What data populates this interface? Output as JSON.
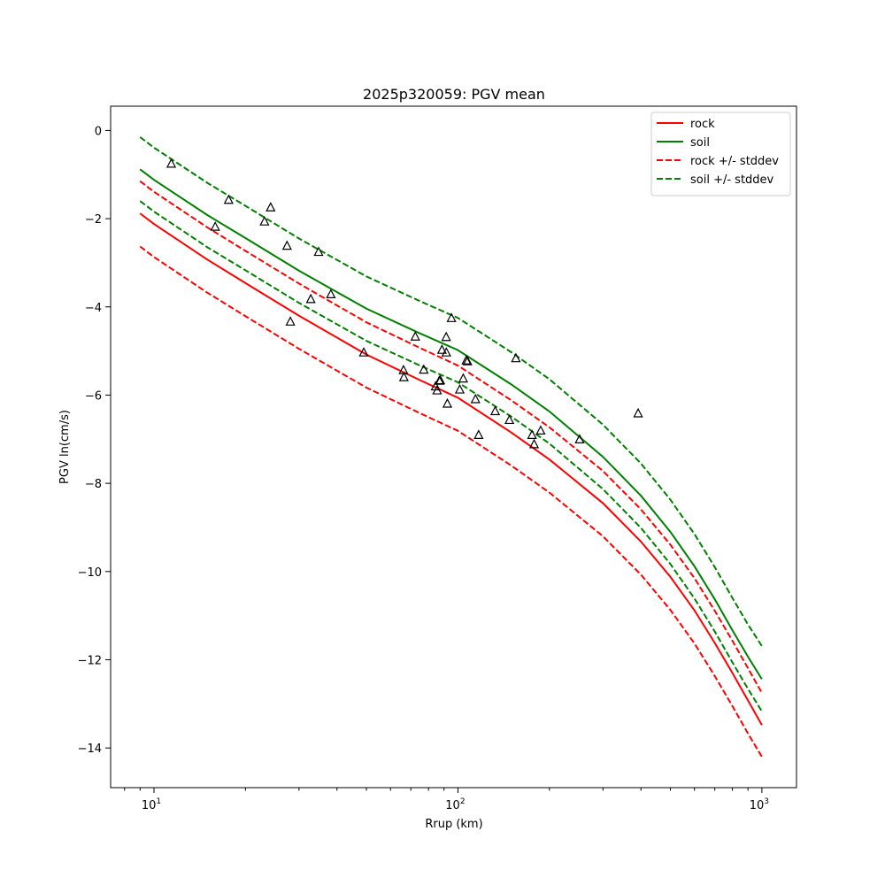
{
  "chart_data": {
    "type": "line",
    "title": "2025p320059: PGV mean",
    "xlabel": "Rrup (km)",
    "ylabel": "PGV ln(cm/s)",
    "xscale": "log",
    "xlim": [
      7.2,
      1300
    ],
    "ylim": [
      -14.9,
      0.55
    ],
    "grid": false,
    "legend_position": "top-right",
    "x_ticks": [
      {
        "value": 10,
        "base": "10",
        "exp": "1"
      },
      {
        "value": 100,
        "base": "10",
        "exp": "2"
      },
      {
        "value": 1000,
        "base": "10",
        "exp": "3"
      }
    ],
    "y_ticks": [
      {
        "value": 0,
        "label": "0"
      },
      {
        "value": -2,
        "label": "−2"
      },
      {
        "value": -4,
        "label": "−4"
      },
      {
        "value": -6,
        "label": "−6"
      },
      {
        "value": -8,
        "label": "−8"
      },
      {
        "value": -10,
        "label": "−10"
      },
      {
        "value": -12,
        "label": "−12"
      },
      {
        "value": -14,
        "label": "−14"
      }
    ],
    "x": [
      9,
      10,
      15,
      20,
      30,
      50,
      75,
      100,
      150,
      200,
      300,
      400,
      500,
      600,
      700,
      800,
      900,
      1000
    ],
    "series": [
      {
        "name": "rock",
        "color": "#ff0000",
        "dash": "solid",
        "values": [
          -1.88,
          -2.12,
          -2.93,
          -3.46,
          -4.2,
          -5.08,
          -5.66,
          -6.06,
          -6.85,
          -7.46,
          -8.45,
          -9.32,
          -10.12,
          -10.88,
          -11.62,
          -12.3,
          -12.92,
          -13.48
        ]
      },
      {
        "name": "soil",
        "color": "#008000",
        "dash": "solid",
        "values": [
          -0.88,
          -1.12,
          -1.92,
          -2.44,
          -3.18,
          -4.04,
          -4.6,
          -4.98,
          -5.76,
          -6.37,
          -7.4,
          -8.28,
          -9.1,
          -9.88,
          -10.63,
          -11.33,
          -11.93,
          -12.44
        ]
      },
      {
        "name": "rock +/- stddev",
        "color": "#ff0000",
        "dash": "dashed",
        "values": [
          -1.15,
          -1.39,
          -2.2,
          -2.73,
          -3.47,
          -4.35,
          -4.93,
          -5.33,
          -6.12,
          -6.73,
          -7.72,
          -8.59,
          -9.39,
          -10.15,
          -10.89,
          -11.57,
          -12.19,
          -12.75
        ]
      },
      {
        "name": "",
        "color": "#ff0000",
        "dash": "dashed",
        "values": [
          -2.63,
          -2.87,
          -3.68,
          -4.21,
          -4.95,
          -5.83,
          -6.41,
          -6.81,
          -7.6,
          -8.21,
          -9.2,
          -10.07,
          -10.87,
          -11.63,
          -12.37,
          -13.05,
          -13.67,
          -14.2
        ]
      },
      {
        "name": "soil +/- stddev",
        "color": "#008000",
        "dash": "dashed",
        "values": [
          -0.15,
          -0.39,
          -1.19,
          -1.71,
          -2.45,
          -3.31,
          -3.87,
          -4.25,
          -5.03,
          -5.64,
          -6.67,
          -7.55,
          -8.37,
          -9.15,
          -9.9,
          -10.6,
          -11.2,
          -11.69
        ]
      },
      {
        "name": "",
        "color": "#008000",
        "dash": "dashed",
        "values": [
          -1.6,
          -1.84,
          -2.65,
          -3.17,
          -3.91,
          -4.77,
          -5.33,
          -5.71,
          -6.49,
          -7.1,
          -8.13,
          -9.01,
          -9.83,
          -10.61,
          -11.36,
          -12.06,
          -12.66,
          -13.17
        ]
      }
    ],
    "observations": {
      "marker": "triangle",
      "points": [
        {
          "x": 11.4,
          "y": -0.76
        },
        {
          "x": 15.9,
          "y": -2.19
        },
        {
          "x": 17.6,
          "y": -1.58
        },
        {
          "x": 23.1,
          "y": -2.07
        },
        {
          "x": 24.2,
          "y": -1.75
        },
        {
          "x": 27.4,
          "y": -2.62
        },
        {
          "x": 28.1,
          "y": -4.34
        },
        {
          "x": 32.8,
          "y": -3.83
        },
        {
          "x": 34.8,
          "y": -2.76
        },
        {
          "x": 38.2,
          "y": -3.72
        },
        {
          "x": 49,
          "y": -5.04
        },
        {
          "x": 66.2,
          "y": -5.44
        },
        {
          "x": 66.4,
          "y": -5.6
        },
        {
          "x": 72.4,
          "y": -4.68
        },
        {
          "x": 77.2,
          "y": -5.43
        },
        {
          "x": 84.4,
          "y": -5.81
        },
        {
          "x": 85.4,
          "y": -5.9
        },
        {
          "x": 86.9,
          "y": -5.68
        },
        {
          "x": 87.5,
          "y": -5.67
        },
        {
          "x": 88.6,
          "y": -4.98
        },
        {
          "x": 91.5,
          "y": -4.69
        },
        {
          "x": 91.6,
          "y": -5.04
        },
        {
          "x": 92.3,
          "y": -6.2
        },
        {
          "x": 95.2,
          "y": -4.26
        },
        {
          "x": 101.4,
          "y": -5.88
        },
        {
          "x": 104.1,
          "y": -5.63
        },
        {
          "x": 106.6,
          "y": -5.22
        },
        {
          "x": 107.5,
          "y": -5.24
        },
        {
          "x": 114.2,
          "y": -6.1
        },
        {
          "x": 117,
          "y": -6.91
        },
        {
          "x": 132.6,
          "y": -6.37
        },
        {
          "x": 147.7,
          "y": -6.57
        },
        {
          "x": 155.1,
          "y": -5.17
        },
        {
          "x": 175.3,
          "y": -6.91
        },
        {
          "x": 178.1,
          "y": -7.12
        },
        {
          "x": 187.2,
          "y": -6.81
        },
        {
          "x": 251.4,
          "y": -7.01
        },
        {
          "x": 391.7,
          "y": -6.42
        }
      ]
    }
  }
}
